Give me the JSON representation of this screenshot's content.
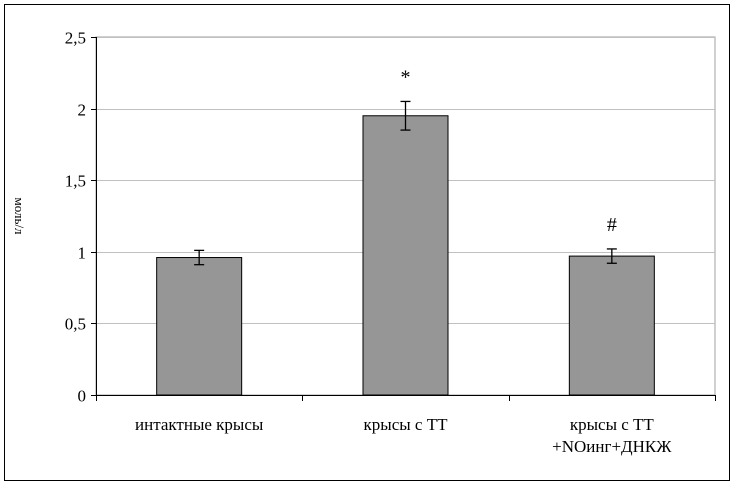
{
  "chart_data": {
    "type": "bar",
    "title": "",
    "xlabel": "",
    "ylabel": "моль/л",
    "ylim": [
      0,
      2.5
    ],
    "yticks": [
      {
        "value": 0,
        "label": "0"
      },
      {
        "value": 0.5,
        "label": "0,5"
      },
      {
        "value": 1,
        "label": "1"
      },
      {
        "value": 1.5,
        "label": "1,5"
      },
      {
        "value": 2,
        "label": "2"
      },
      {
        "value": 2.5,
        "label": "2,5"
      }
    ],
    "categories": [
      [
        "интактные крысы"
      ],
      [
        "крысы с ТТ"
      ],
      [
        "крысы с ТТ",
        "+NOинг+ДНКЖ"
      ]
    ],
    "values": [
      0.96,
      1.95,
      0.97
    ],
    "errors": [
      0.05,
      0.1,
      0.05
    ],
    "annotations": [
      "",
      "*",
      "#"
    ],
    "grid": true,
    "bar_color": "#969696"
  }
}
